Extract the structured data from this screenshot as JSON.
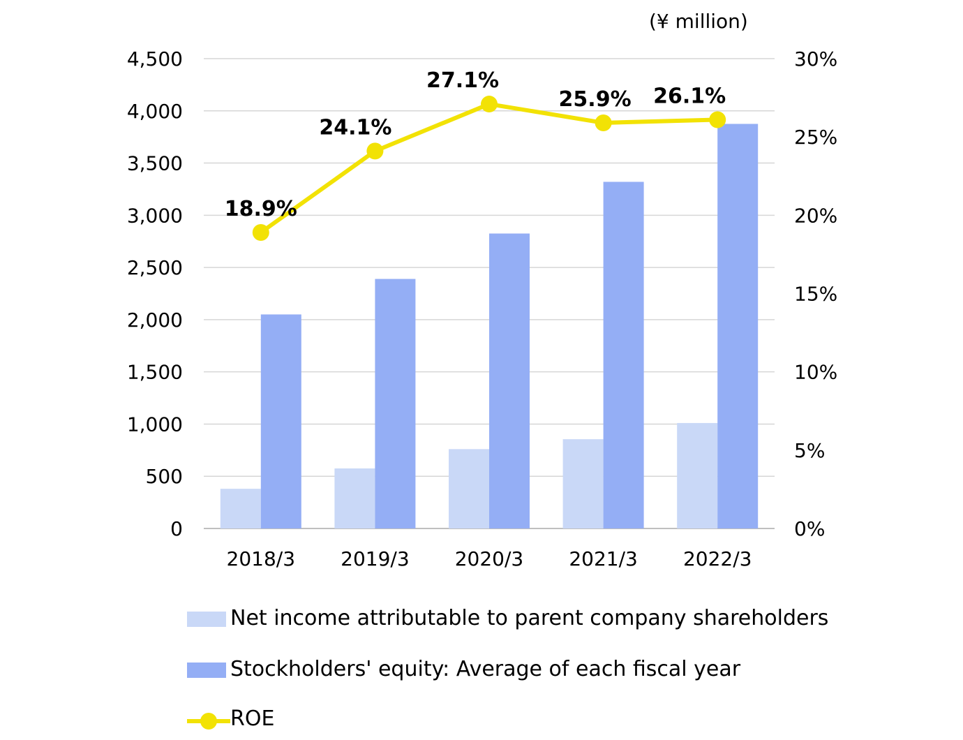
{
  "unit_label": "(¥ million)",
  "colors": {
    "net_income": "#c9d8f7",
    "equity": "#94aef5",
    "roe": "#f2e205",
    "grid": "#d6d6d6",
    "axis": "#bfbfbf"
  },
  "chart_data": {
    "type": "bar",
    "categories": [
      "2018/3",
      "2019/3",
      "2020/3",
      "2021/3",
      "2022/3"
    ],
    "series": [
      {
        "name": "Net income attributable to parent company shareholders",
        "type": "bar",
        "axis": "left",
        "values": [
          380,
          575,
          760,
          855,
          1010
        ]
      },
      {
        "name": "Stockholders' equity: Average of each fiscal year",
        "type": "bar",
        "axis": "left",
        "values": [
          2050,
          2390,
          2825,
          3320,
          3875
        ]
      },
      {
        "name": "ROE",
        "type": "line",
        "axis": "right",
        "values": [
          18.9,
          24.1,
          27.1,
          25.9,
          26.1
        ],
        "data_labels": [
          "18.9%",
          "24.1%",
          "27.1%",
          "25.9%",
          "26.1%"
        ]
      }
    ],
    "ylim_left": [
      0,
      4500
    ],
    "yticks_left": [
      "0",
      "500",
      "1,000",
      "1,500",
      "2,000",
      "2,500",
      "3,000",
      "3,500",
      "4,000",
      "4,500"
    ],
    "ylim_right": [
      0,
      30
    ],
    "yticks_right": [
      "0%",
      "5%",
      "10%",
      "15%",
      "20%",
      "25%",
      "30%"
    ],
    "grid": true,
    "legend_position": "bottom"
  }
}
